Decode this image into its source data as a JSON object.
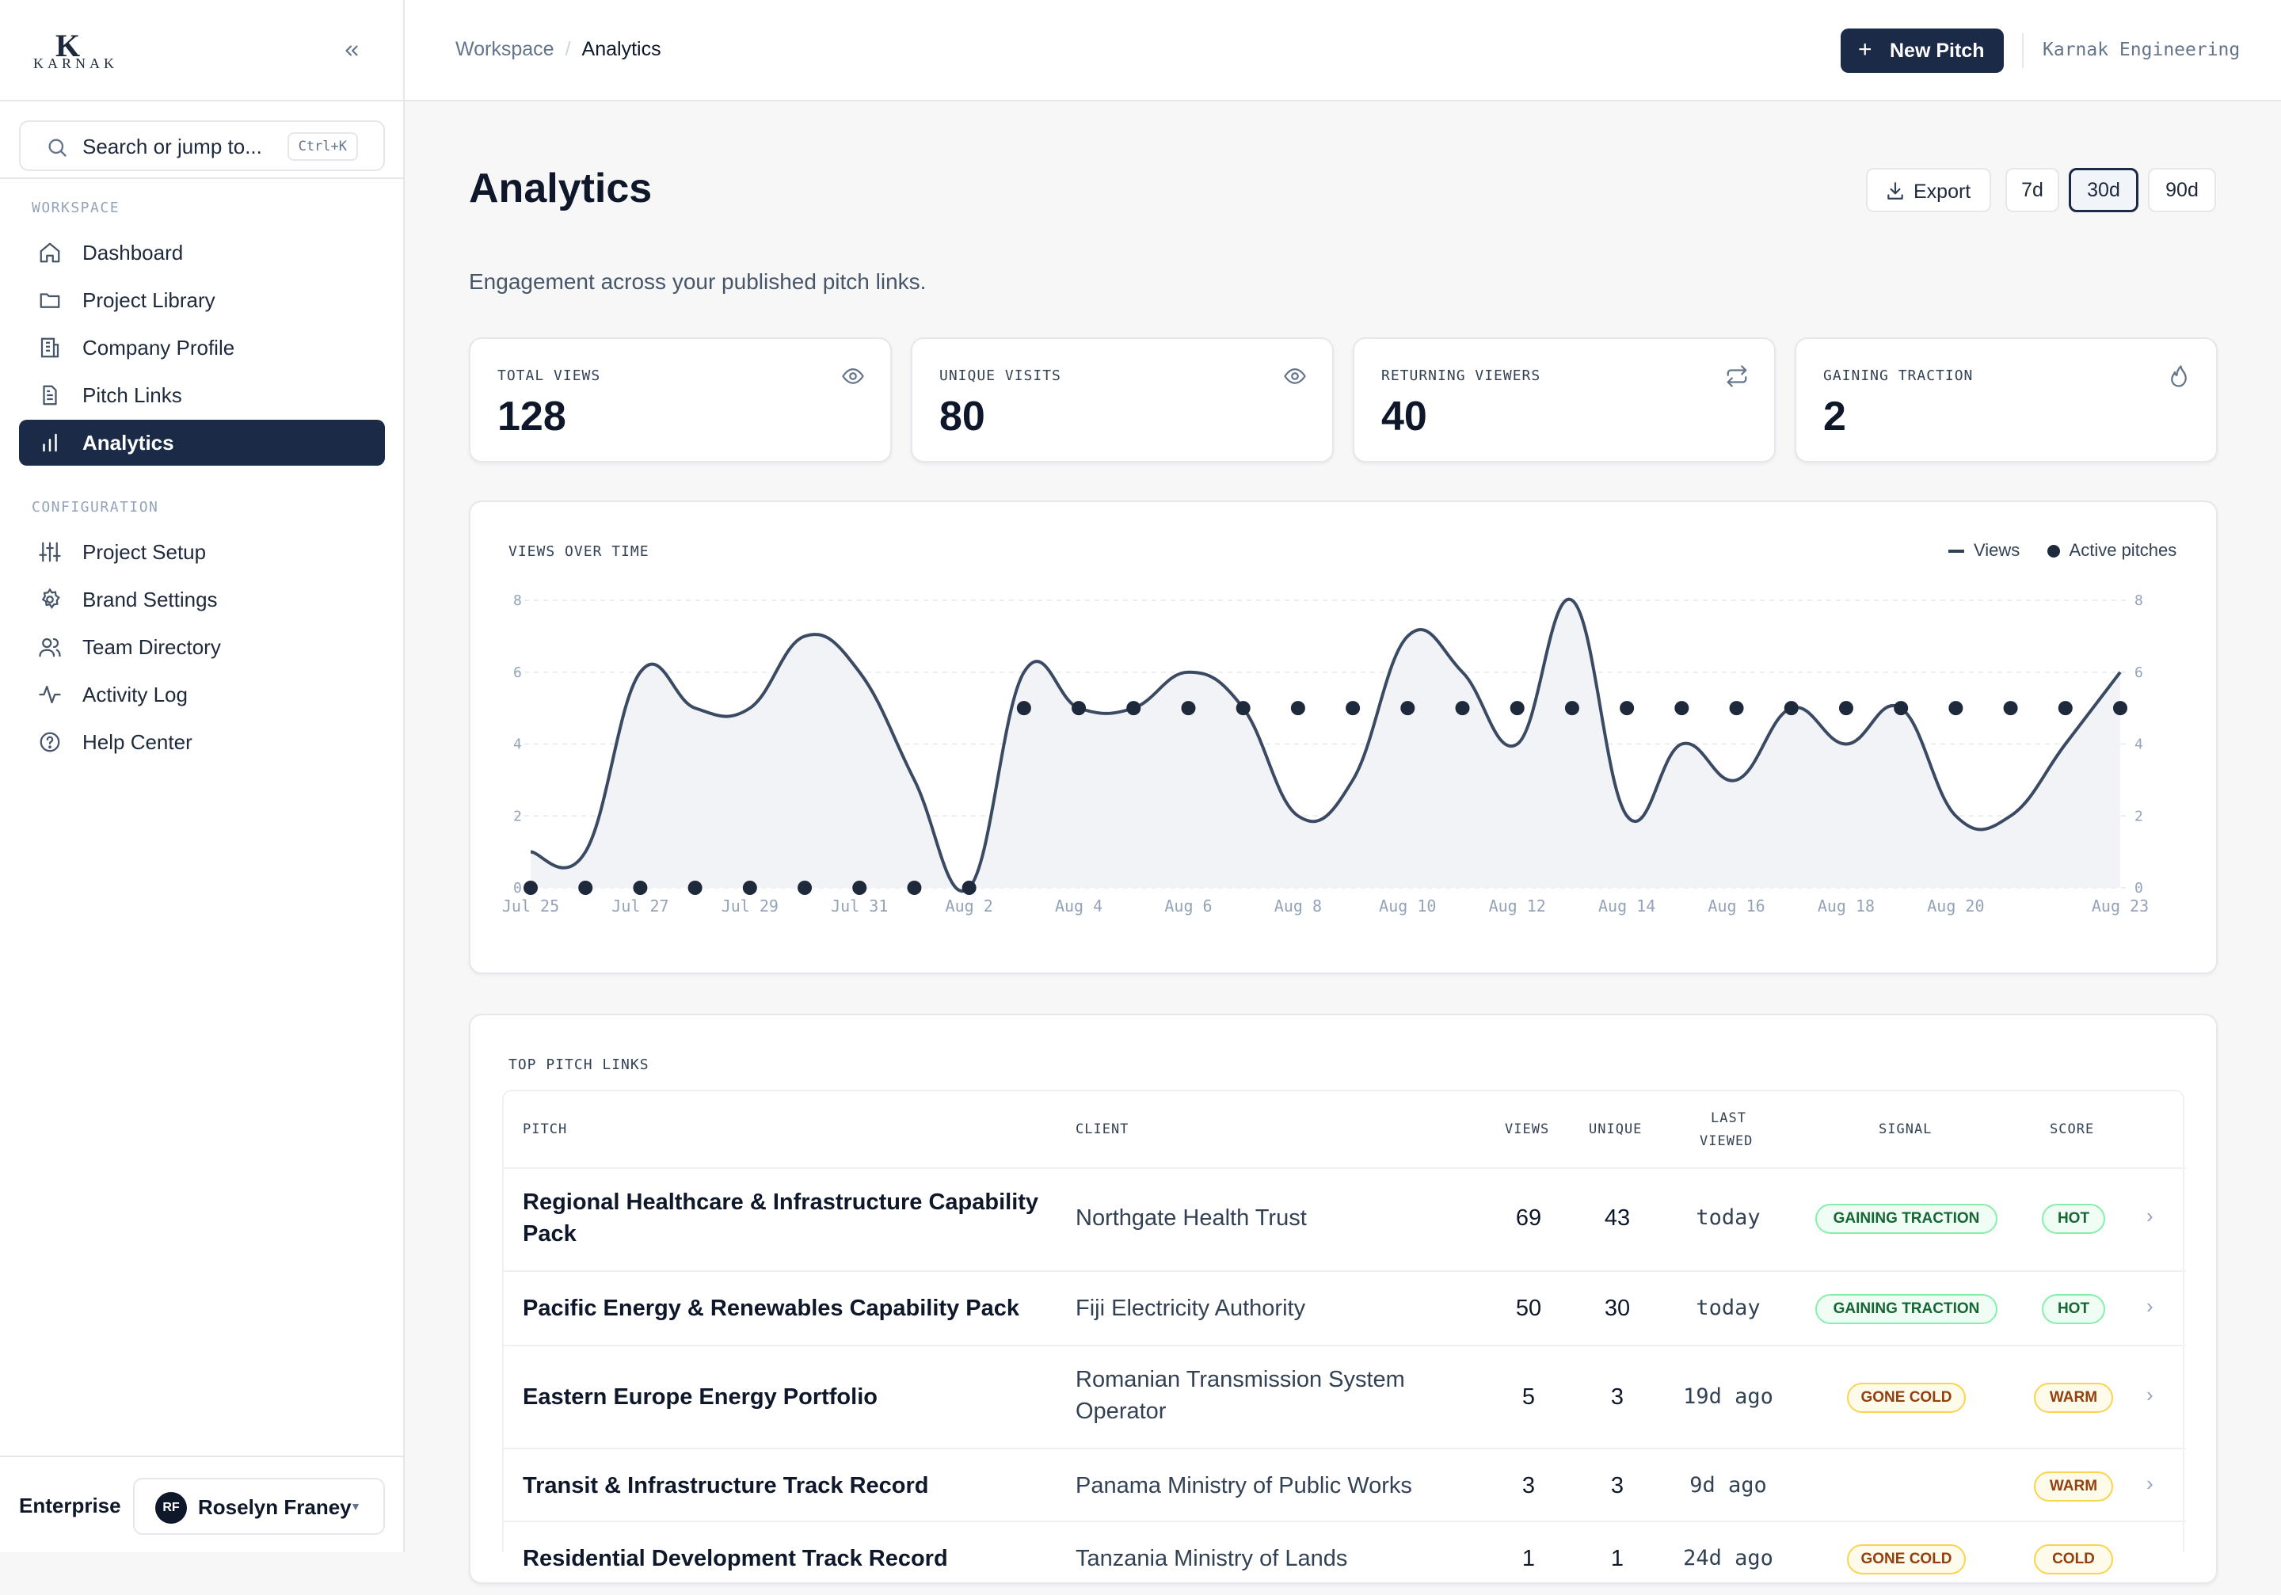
{
  "brand": {
    "logo_letter": "K",
    "logo_word": "KARNAK"
  },
  "sidebar": {
    "collapse_icon": "chevrons-left",
    "search": {
      "placeholder": "Search or jump to...",
      "shortcut": "Ctrl+K"
    },
    "sections": [
      {
        "label": "WORKSPACE",
        "items": [
          {
            "label": "Dashboard",
            "icon": "home-icon"
          },
          {
            "label": "Project Library",
            "icon": "folder-icon"
          },
          {
            "label": "Company Profile",
            "icon": "building-icon"
          },
          {
            "label": "Pitch Links",
            "icon": "document-icon"
          },
          {
            "label": "Analytics",
            "icon": "bar-chart-icon",
            "active": true
          }
        ]
      },
      {
        "label": "CONFIGURATION",
        "items": [
          {
            "label": "Project Setup",
            "icon": "sliders-icon"
          },
          {
            "label": "Brand Settings",
            "icon": "gear-icon"
          },
          {
            "label": "Team Directory",
            "icon": "users-icon"
          },
          {
            "label": "Activity Log",
            "icon": "activity-icon"
          },
          {
            "label": "Help Center",
            "icon": "help-circle-icon"
          }
        ]
      }
    ],
    "plan": "Enterprise",
    "user": {
      "initials": "RF",
      "name": "Roselyn Franey"
    }
  },
  "header": {
    "breadcrumb": [
      "Workspace",
      "Analytics"
    ],
    "new_pitch_label": "New Pitch",
    "org_name": "Karnak Engineering"
  },
  "page": {
    "title": "Analytics",
    "subtitle": "Engagement across your published pitch links.",
    "export_label": "Export",
    "ranges": [
      "7d",
      "30d",
      "90d"
    ],
    "selected_range": "30d"
  },
  "stats": [
    {
      "label": "TOTAL VIEWS",
      "value": "128",
      "icon": "eye-icon"
    },
    {
      "label": "UNIQUE VISITS",
      "value": "80",
      "icon": "eye-icon"
    },
    {
      "label": "RETURNING VIEWERS",
      "value": "40",
      "icon": "repeat-icon"
    },
    {
      "label": "GAINING TRACTION",
      "value": "2",
      "icon": "flame-icon"
    }
  ],
  "chart_data": {
    "type": "line",
    "title": "VIEWS OVER TIME",
    "legend": [
      "Views",
      "Active pitches"
    ],
    "legend_position": "top-right",
    "x": [
      "Jul 25",
      "Jul 26",
      "Jul 27",
      "Jul 28",
      "Jul 29",
      "Jul 30",
      "Jul 31",
      "Aug 1",
      "Aug 2",
      "Aug 3",
      "Aug 4",
      "Aug 5",
      "Aug 6",
      "Aug 7",
      "Aug 8",
      "Aug 9",
      "Aug 10",
      "Aug 11",
      "Aug 12",
      "Aug 13",
      "Aug 14",
      "Aug 15",
      "Aug 16",
      "Aug 17",
      "Aug 18",
      "Aug 19",
      "Aug 20",
      "Aug 21",
      "Aug 22",
      "Aug 23"
    ],
    "x_tick_labels": [
      "Jul 25",
      "Jul 27",
      "Jul 29",
      "Jul 31",
      "Aug 2",
      "Aug 4",
      "Aug 6",
      "Aug 8",
      "Aug 10",
      "Aug 12",
      "Aug 14",
      "Aug 16",
      "Aug 18",
      "Aug 20",
      "Aug 23"
    ],
    "y_ticks": [
      0,
      2,
      4,
      6,
      8
    ],
    "ylim": [
      0,
      8
    ],
    "grid": true,
    "series": [
      {
        "name": "Views",
        "style": "line",
        "values": [
          1,
          1,
          6,
          5,
          5,
          7,
          6,
          3,
          0,
          6,
          5,
          5,
          6,
          5,
          2,
          3,
          7,
          6,
          4,
          8,
          2,
          4,
          3,
          5,
          4,
          5,
          2,
          2,
          4,
          6
        ]
      },
      {
        "name": "Active pitches",
        "style": "points",
        "values": [
          0,
          0,
          0,
          0,
          0,
          0,
          0,
          0,
          0,
          5,
          5,
          5,
          5,
          5,
          5,
          5,
          5,
          5,
          5,
          5,
          5,
          5,
          5,
          5,
          5,
          5,
          5,
          5,
          5,
          5
        ]
      }
    ]
  },
  "top_links": {
    "title": "TOP PITCH LINKS",
    "columns": {
      "pitch": "PITCH",
      "client": "CLIENT",
      "views": "VIEWS",
      "unique": "UNIQUE",
      "last_1": "LAST",
      "last_2": "VIEWED",
      "signal": "SIGNAL",
      "score": "SCORE"
    },
    "rows": [
      {
        "pitch": "Regional Healthcare & Infrastructure Capability Pack",
        "client": "Northgate Health Trust",
        "views": "69",
        "unique": "43",
        "last_viewed": "today",
        "signal": "GAINING TRACTION",
        "score": "HOT"
      },
      {
        "pitch": "Pacific Energy & Renewables Capability Pack",
        "client": "Fiji Electricity Authority",
        "views": "50",
        "unique": "30",
        "last_viewed": "today",
        "signal": "GAINING TRACTION",
        "score": "HOT"
      },
      {
        "pitch": "Eastern Europe Energy Portfolio",
        "client": "Romanian Transmission System Operator",
        "views": "5",
        "unique": "3",
        "last_viewed": "19d ago",
        "signal": "GONE COLD",
        "score": "WARM"
      },
      {
        "pitch": "Transit & Infrastructure Track Record",
        "client": "Panama Ministry of Public Works",
        "views": "3",
        "unique": "3",
        "last_viewed": "9d ago",
        "signal": "",
        "score": "WARM"
      },
      {
        "pitch": "Residential Development Track Record",
        "client": "Tanzania Ministry of Lands",
        "views": "1",
        "unique": "1",
        "last_viewed": "24d ago",
        "signal": "GONE COLD",
        "score": "COLD"
      }
    ]
  }
}
